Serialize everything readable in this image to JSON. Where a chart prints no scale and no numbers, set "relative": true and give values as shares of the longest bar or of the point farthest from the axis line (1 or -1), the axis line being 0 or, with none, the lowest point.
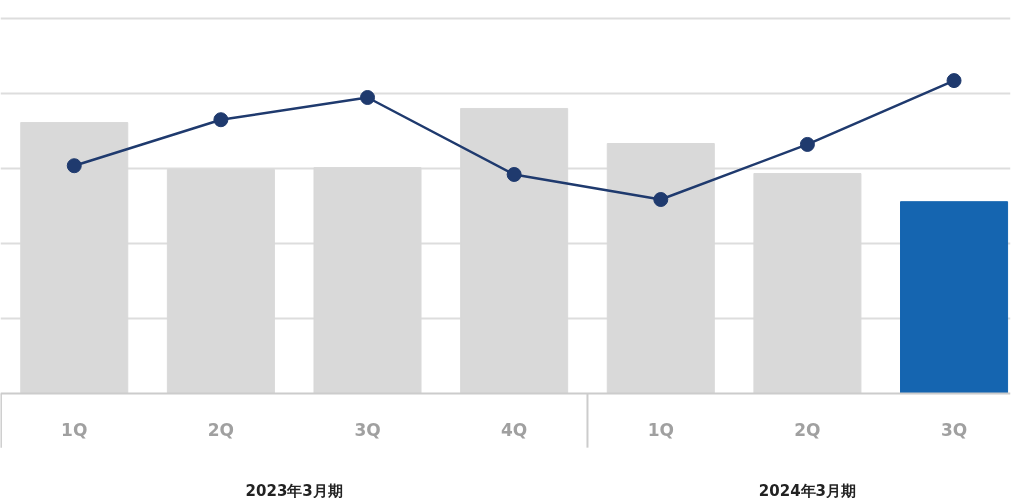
{
  "chart_data": {
    "type": "bar",
    "relative": true,
    "categories": [
      "1Q",
      "2Q",
      "3Q",
      "4Q",
      "1Q",
      "2Q",
      "3Q"
    ],
    "series": [
      {
        "colors": [
          "#d9d9d9",
          "#d9d9d9",
          "#d9d9d9",
          "#d9d9d9",
          "#d9d9d9",
          "#d9d9d9",
          "#1565b0"
        ],
        "values": [
          0.866,
          0.716,
          0.722,
          0.911,
          0.799,
          0.703,
          0.613
        ]
      },
      {
        "type": "line",
        "color": "#1f3a6e",
        "marker": "circle",
        "values": [
          0.728,
          0.875,
          0.946,
          0.7,
          0.62,
          0.796,
          1
        ]
      }
    ],
    "annotations": [
      "2023年3月期",
      "2024年3月期"
    ],
    "grid": "y",
    "tick_labels": "x"
  }
}
